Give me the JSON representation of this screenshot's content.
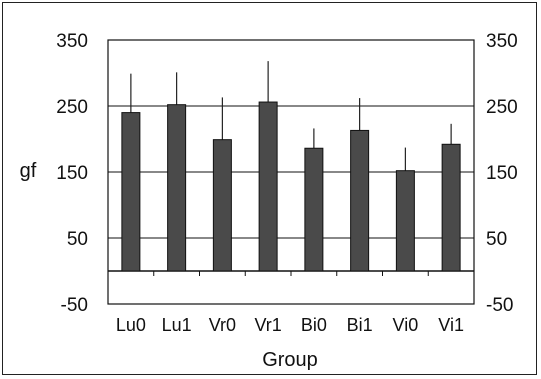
{
  "chart_data": {
    "type": "bar",
    "title": "",
    "xlabel": "Group",
    "ylabel": "gf",
    "categories": [
      "Lu0",
      "Lu1",
      "Vr0",
      "Vr1",
      "Bi0",
      "Bi1",
      "Vi0",
      "Vi1"
    ],
    "series": [
      {
        "values": [
          240,
          252,
          199,
          256,
          186,
          213,
          152,
          192
        ],
        "error_upper": [
          299,
          301,
          263,
          318,
          216,
          262,
          187,
          223
        ]
      }
    ],
    "ylim": [
      -50,
      350
    ],
    "yticks_left": [
      "350",
      "250",
      "150",
      "50",
      "-50"
    ],
    "yticks_right": [
      "350",
      "250",
      "150",
      "50",
      "-50"
    ],
    "ytick_values": [
      350,
      250,
      150,
      50,
      -50
    ],
    "grid": "horizontal",
    "bar_color": "#4a4a4a",
    "error_bars": true
  }
}
